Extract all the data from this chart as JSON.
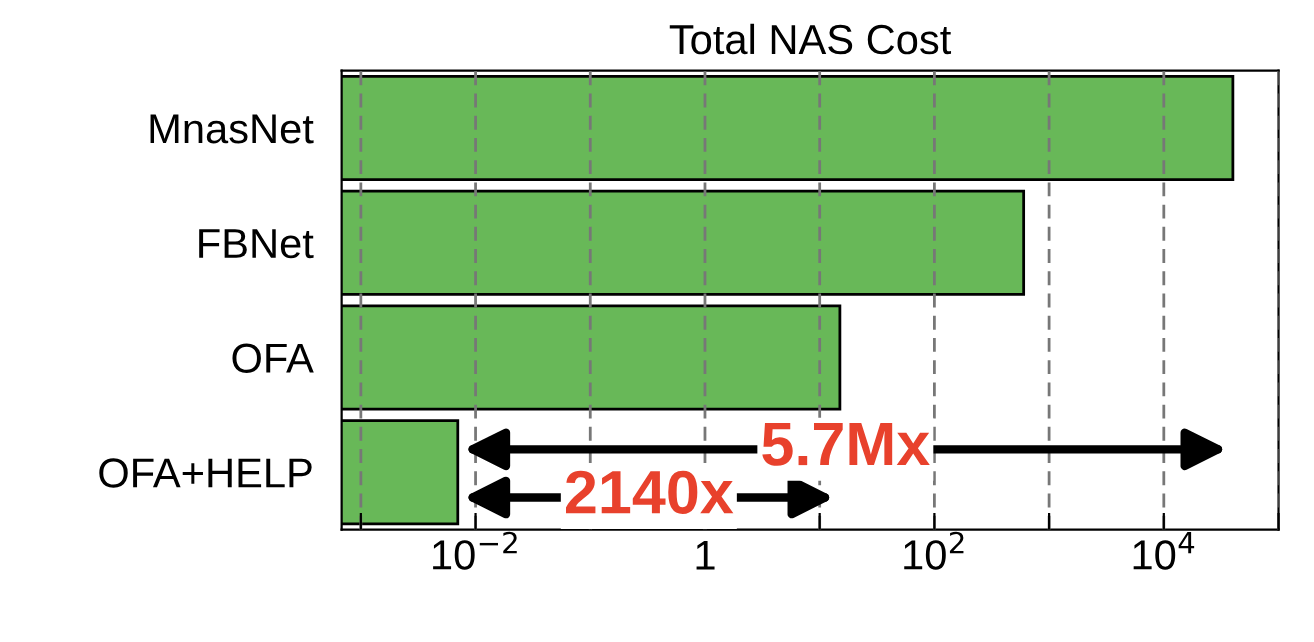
{
  "chart_data": {
    "type": "bar",
    "orientation": "horizontal",
    "title": "Total NAS Cost",
    "categories": [
      "MnasNet",
      "FBNet",
      "OFA",
      "OFA+HELP"
    ],
    "values": [
      40000,
      600,
      15,
      0.007
    ],
    "color": "#68b858",
    "log": "x",
    "xlim": [
      0.00068,
      100000
    ],
    "xticks": [
      {
        "value": 0.001,
        "label": null
      },
      {
        "value": 0.01,
        "label": "10$^{−2}$"
      },
      {
        "value": 0.1,
        "label": null
      },
      {
        "value": 1,
        "label": "1"
      },
      {
        "value": 10,
        "label": null
      },
      {
        "value": 100,
        "label": "10$^{2}$"
      },
      {
        "value": 1000,
        "label": null
      },
      {
        "value": 10000,
        "label": "10$^{4}$"
      },
      {
        "value": 100000,
        "label": null
      }
    ],
    "grid": "x",
    "annotations": [
      "5.7Mx",
      "2140x"
    ]
  }
}
